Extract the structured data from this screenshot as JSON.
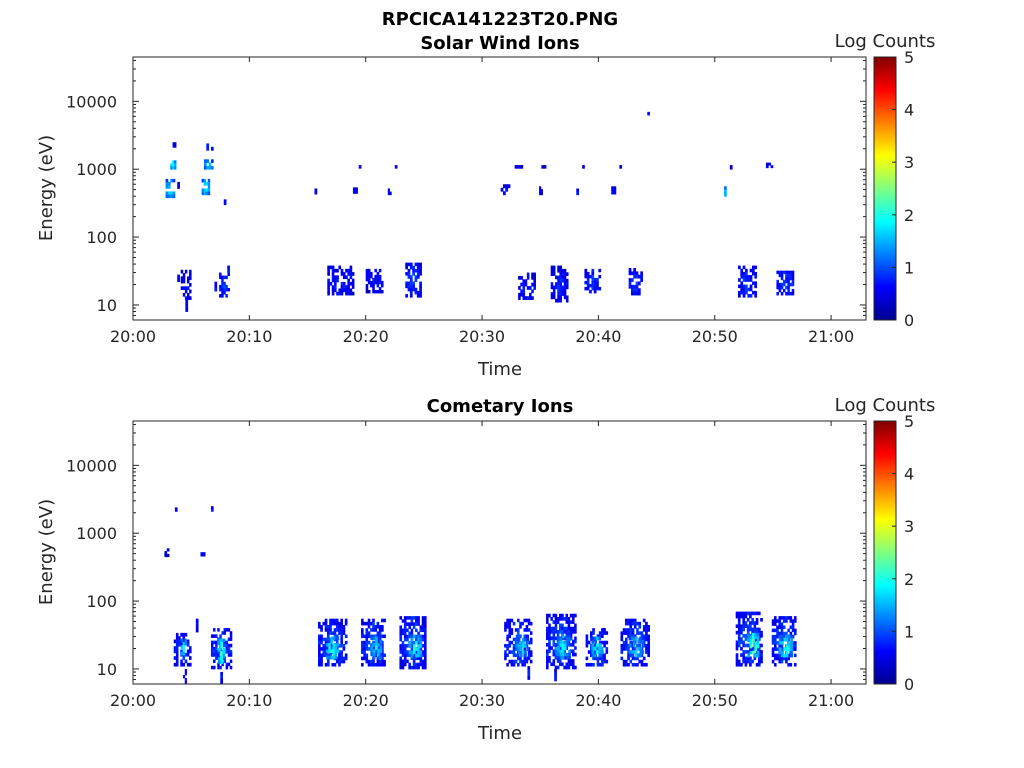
{
  "figure": {
    "title": "RPCICA141223T20.PNG"
  },
  "colormap": {
    "name": "jet",
    "stops": [
      "#00008f",
      "#0000ff",
      "#0080ff",
      "#00ffff",
      "#80ff80",
      "#ffff00",
      "#ff8000",
      "#ff0000",
      "#800000"
    ]
  },
  "chart_data": [
    {
      "type": "heatmap",
      "title": "Solar Wind Ions",
      "xlabel": "Time",
      "ylabel": "Energy (eV)",
      "yscale": "log",
      "xlim_min": [
        0,
        63
      ],
      "ylim_ev": [
        6,
        45000
      ],
      "x_ticks": [
        {
          "min": 0,
          "label": "20:00"
        },
        {
          "min": 10,
          "label": "20:10"
        },
        {
          "min": 20,
          "label": "20:20"
        },
        {
          "min": 30,
          "label": "20:30"
        },
        {
          "min": 40,
          "label": "20:40"
        },
        {
          "min": 50,
          "label": "20:50"
        },
        {
          "min": 60,
          "label": "21:00"
        }
      ],
      "y_ticks": [
        {
          "ev": 10,
          "label": "10"
        },
        {
          "ev": 100,
          "label": "100"
        },
        {
          "ev": 1000,
          "label": "1000"
        },
        {
          "ev": 10000,
          "label": "10000"
        }
      ],
      "colorbar": {
        "label": "Log Counts",
        "min": 0,
        "max": 5,
        "ticks": [
          "0",
          "1",
          "2",
          "3",
          "4",
          "5"
        ]
      },
      "patches": [
        {
          "t0": 2.8,
          "t1": 3.6,
          "e0": 380,
          "e1": 720,
          "v": 1.6
        },
        {
          "t0": 3.2,
          "t1": 3.7,
          "e0": 1000,
          "e1": 1350,
          "v": 1.8
        },
        {
          "t0": 3.4,
          "t1": 3.7,
          "e0": 2100,
          "e1": 2500,
          "v": 0.6
        },
        {
          "t0": 3.8,
          "t1": 4.0,
          "e0": 520,
          "e1": 650,
          "v": 0.6
        },
        {
          "t0": 5.9,
          "t1": 6.6,
          "e0": 420,
          "e1": 720,
          "v": 1.7
        },
        {
          "t0": 6.1,
          "t1": 6.9,
          "e0": 1000,
          "e1": 1400,
          "v": 1.6
        },
        {
          "t0": 6.3,
          "t1": 6.9,
          "e0": 1900,
          "e1": 2400,
          "v": 0.8
        },
        {
          "t0": 7.8,
          "t1": 8.0,
          "e0": 300,
          "e1": 360,
          "v": 0.6
        },
        {
          "t0": 3.8,
          "t1": 4.0,
          "e0": 22,
          "e1": 28,
          "v": 0.5
        },
        {
          "t0": 4.1,
          "t1": 5.0,
          "e0": 12,
          "e1": 33,
          "v": 0.6
        },
        {
          "t0": 4.5,
          "t1": 4.7,
          "e0": 8,
          "e1": 12,
          "v": 0.6
        },
        {
          "t0": 7.0,
          "t1": 7.2,
          "e0": 16,
          "e1": 22,
          "v": 0.6
        },
        {
          "t0": 7.4,
          "t1": 8.3,
          "e0": 13,
          "e1": 30,
          "v": 0.8
        },
        {
          "t0": 8.1,
          "t1": 8.3,
          "e0": 30,
          "e1": 38,
          "v": 0.6
        },
        {
          "t0": 15.6,
          "t1": 15.8,
          "e0": 430,
          "e1": 520,
          "v": 0.6
        },
        {
          "t0": 18.9,
          "t1": 19.3,
          "e0": 440,
          "e1": 540,
          "v": 0.6
        },
        {
          "t0": 19.4,
          "t1": 19.6,
          "e0": 1050,
          "e1": 1150,
          "v": 0.5
        },
        {
          "t0": 21.9,
          "t1": 22.2,
          "e0": 420,
          "e1": 580,
          "v": 0.6
        },
        {
          "t0": 22.5,
          "t1": 22.7,
          "e0": 1050,
          "e1": 1150,
          "v": 0.5
        },
        {
          "t0": 16.7,
          "t1": 19.0,
          "e0": 14,
          "e1": 38,
          "v": 0.7
        },
        {
          "t0": 20.0,
          "t1": 21.5,
          "e0": 15,
          "e1": 34,
          "v": 0.7
        },
        {
          "t0": 23.4,
          "t1": 24.8,
          "e0": 13,
          "e1": 42,
          "v": 0.8
        },
        {
          "t0": 32.8,
          "t1": 33.5,
          "e0": 1050,
          "e1": 1150,
          "v": 0.5
        },
        {
          "t0": 31.6,
          "t1": 32.4,
          "e0": 420,
          "e1": 600,
          "v": 0.7
        },
        {
          "t0": 34.9,
          "t1": 35.2,
          "e0": 420,
          "e1": 560,
          "v": 0.6
        },
        {
          "t0": 35.1,
          "t1": 35.5,
          "e0": 1050,
          "e1": 1150,
          "v": 0.5
        },
        {
          "t0": 38.1,
          "t1": 38.3,
          "e0": 420,
          "e1": 520,
          "v": 0.6
        },
        {
          "t0": 38.6,
          "t1": 38.8,
          "e0": 1050,
          "e1": 1150,
          "v": 0.5
        },
        {
          "t0": 41.1,
          "t1": 41.5,
          "e0": 430,
          "e1": 560,
          "v": 0.6
        },
        {
          "t0": 41.8,
          "t1": 42.0,
          "e0": 1050,
          "e1": 1150,
          "v": 0.5
        },
        {
          "t0": 44.2,
          "t1": 44.4,
          "e0": 6300,
          "e1": 7000,
          "v": 0.6
        },
        {
          "t0": 33.1,
          "t1": 34.6,
          "e0": 12,
          "e1": 30,
          "v": 0.7
        },
        {
          "t0": 35.9,
          "t1": 37.4,
          "e0": 11,
          "e1": 38,
          "v": 0.7
        },
        {
          "t0": 38.8,
          "t1": 40.2,
          "e0": 15,
          "e1": 34,
          "v": 0.8
        },
        {
          "t0": 42.6,
          "t1": 43.8,
          "e0": 14,
          "e1": 35,
          "v": 0.8
        },
        {
          "t0": 50.8,
          "t1": 51.0,
          "e0": 400,
          "e1": 560,
          "v": 1.4
        },
        {
          "t0": 51.3,
          "t1": 51.5,
          "e0": 1000,
          "e1": 1150,
          "v": 0.5
        },
        {
          "t0": 54.4,
          "t1": 55.0,
          "e0": 1050,
          "e1": 1250,
          "v": 0.6
        },
        {
          "t0": 52.0,
          "t1": 53.6,
          "e0": 13,
          "e1": 38,
          "v": 0.8
        },
        {
          "t0": 55.3,
          "t1": 56.8,
          "e0": 14,
          "e1": 32,
          "v": 0.9
        }
      ]
    },
    {
      "type": "heatmap",
      "title": "Cometary Ions",
      "xlabel": "Time",
      "ylabel": "Energy (eV)",
      "yscale": "log",
      "xlim_min": [
        0,
        63
      ],
      "ylim_ev": [
        6,
        45000
      ],
      "x_ticks": [
        {
          "min": 0,
          "label": "20:00"
        },
        {
          "min": 10,
          "label": "20:10"
        },
        {
          "min": 20,
          "label": "20:20"
        },
        {
          "min": 30,
          "label": "20:30"
        },
        {
          "min": 40,
          "label": "20:40"
        },
        {
          "min": 50,
          "label": "20:50"
        },
        {
          "min": 60,
          "label": "21:00"
        }
      ],
      "y_ticks": [
        {
          "ev": 10,
          "label": "10"
        },
        {
          "ev": 100,
          "label": "100"
        },
        {
          "ev": 1000,
          "label": "1000"
        },
        {
          "ev": 10000,
          "label": "10000"
        }
      ],
      "colorbar": {
        "label": "Log Counts",
        "min": 0,
        "max": 5,
        "ticks": [
          "0",
          "1",
          "2",
          "3",
          "4",
          "5"
        ]
      },
      "patches": [
        {
          "t0": 3.6,
          "t1": 3.8,
          "e0": 2100,
          "e1": 2400,
          "v": 0.6
        },
        {
          "t0": 6.7,
          "t1": 6.9,
          "e0": 2100,
          "e1": 2500,
          "v": 0.6
        },
        {
          "t0": 2.7,
          "t1": 3.1,
          "e0": 450,
          "e1": 600,
          "v": 0.6
        },
        {
          "t0": 5.8,
          "t1": 6.4,
          "e0": 460,
          "e1": 600,
          "v": 0.6
        },
        {
          "t0": 3.5,
          "t1": 5.0,
          "e0": 11,
          "e1": 34,
          "v": 0.8
        },
        {
          "t0": 4.1,
          "t1": 4.6,
          "e0": 16,
          "e1": 28,
          "v": 1.8
        },
        {
          "t0": 4.3,
          "t1": 4.6,
          "e0": 6,
          "e1": 10,
          "v": 0.6
        },
        {
          "t0": 5.4,
          "t1": 5.6,
          "e0": 35,
          "e1": 55,
          "v": 0.5
        },
        {
          "t0": 6.7,
          "t1": 8.5,
          "e0": 10,
          "e1": 40,
          "v": 0.9
        },
        {
          "t0": 7.3,
          "t1": 7.9,
          "e0": 12,
          "e1": 28,
          "v": 1.9
        },
        {
          "t0": 7.5,
          "t1": 7.7,
          "e0": 6,
          "e1": 10,
          "v": 0.6
        },
        {
          "t0": 15.9,
          "t1": 18.4,
          "e0": 11,
          "e1": 55,
          "v": 0.9
        },
        {
          "t0": 16.6,
          "t1": 17.7,
          "e0": 14,
          "e1": 30,
          "v": 1.8
        },
        {
          "t0": 19.6,
          "t1": 21.7,
          "e0": 11,
          "e1": 55,
          "v": 0.9
        },
        {
          "t0": 20.4,
          "t1": 21.4,
          "e0": 14,
          "e1": 30,
          "v": 1.6
        },
        {
          "t0": 22.9,
          "t1": 25.2,
          "e0": 10,
          "e1": 60,
          "v": 0.9
        },
        {
          "t0": 23.7,
          "t1": 24.8,
          "e0": 15,
          "e1": 32,
          "v": 1.9
        },
        {
          "t0": 31.9,
          "t1": 34.3,
          "e0": 11,
          "e1": 55,
          "v": 0.9
        },
        {
          "t0": 32.9,
          "t1": 34.0,
          "e0": 15,
          "e1": 32,
          "v": 1.5
        },
        {
          "t0": 33.9,
          "t1": 34.1,
          "e0": 7,
          "e1": 11,
          "v": 0.6
        },
        {
          "t0": 35.5,
          "t1": 38.1,
          "e0": 10,
          "e1": 65,
          "v": 0.9
        },
        {
          "t0": 36.3,
          "t1": 37.6,
          "e0": 14,
          "e1": 32,
          "v": 1.7
        },
        {
          "t0": 36.2,
          "t1": 36.4,
          "e0": 6,
          "e1": 10,
          "v": 0.6
        },
        {
          "t0": 38.9,
          "t1": 40.8,
          "e0": 11,
          "e1": 40,
          "v": 0.9
        },
        {
          "t0": 39.4,
          "t1": 40.4,
          "e0": 15,
          "e1": 30,
          "v": 1.7
        },
        {
          "t0": 41.9,
          "t1": 44.4,
          "e0": 11,
          "e1": 55,
          "v": 0.9
        },
        {
          "t0": 42.6,
          "t1": 43.9,
          "e0": 15,
          "e1": 30,
          "v": 1.6
        },
        {
          "t0": 51.8,
          "t1": 54.1,
          "e0": 11,
          "e1": 70,
          "v": 0.9
        },
        {
          "t0": 52.8,
          "t1": 53.8,
          "e0": 15,
          "e1": 34,
          "v": 2.1
        },
        {
          "t0": 54.9,
          "t1": 57.0,
          "e0": 11,
          "e1": 60,
          "v": 0.9
        },
        {
          "t0": 55.5,
          "t1": 56.7,
          "e0": 15,
          "e1": 32,
          "v": 1.9
        }
      ]
    }
  ]
}
